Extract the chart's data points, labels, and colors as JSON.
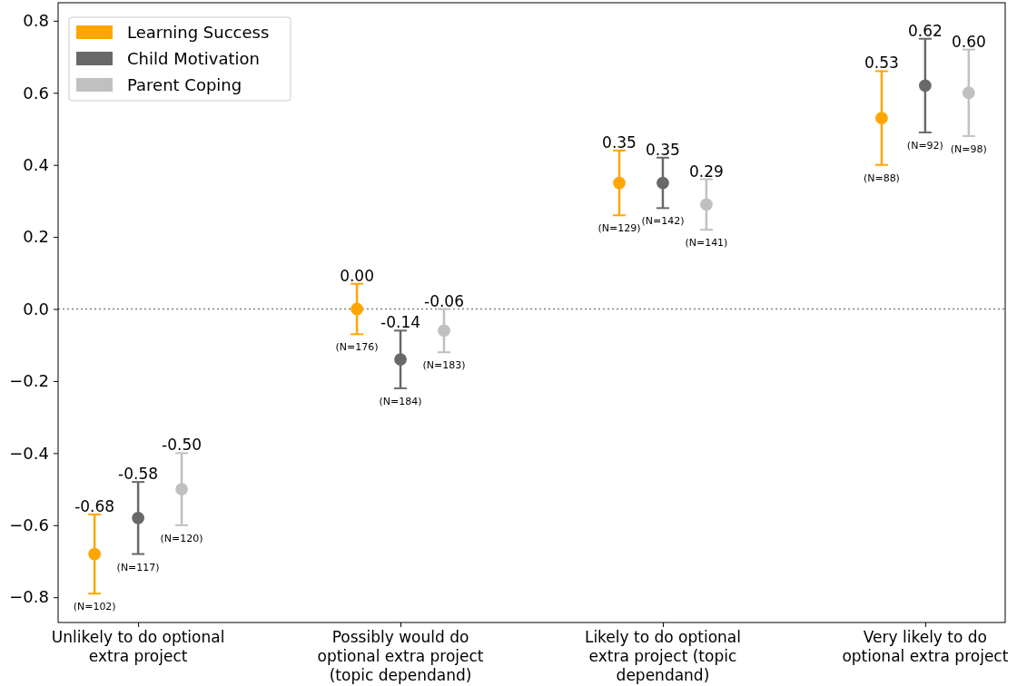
{
  "chart_data": {
    "type": "scatter",
    "categories": [
      "Unlikely to do optional extra project",
      "Possibly would do optional extra project (topic dependand)",
      "Likely to do optional extra project (topic dependand)",
      "Very likely to do optional extra project"
    ],
    "series": [
      {
        "name": "Learning Success",
        "color": "#ffa500",
        "values": [
          -0.68,
          0.0,
          0.35,
          0.53
        ],
        "errors": [
          0.11,
          0.07,
          0.09,
          0.13
        ],
        "value_labels": [
          "-0.68",
          "0.00",
          "0.35",
          "0.53"
        ]
      },
      {
        "name": "Child Motivation",
        "color": "#696969",
        "values": [
          -0.58,
          -0.14,
          0.35,
          0.62
        ],
        "errors": [
          0.1,
          0.08,
          0.07,
          0.13
        ],
        "value_labels": [
          "-0.58",
          "-0.14",
          "0.35",
          "0.62"
        ]
      },
      {
        "name": "Parent Coping",
        "color": "#c0c0c0",
        "values": [
          -0.5,
          -0.06,
          0.29,
          0.6
        ],
        "errors": [
          0.1,
          0.06,
          0.07,
          0.12
        ],
        "value_labels": [
          "-0.50",
          "-0.06",
          "0.29",
          "0.60"
        ]
      }
    ],
    "ylim": [
      -0.87,
      0.85
    ],
    "yticks": [
      {
        "value": -0.8,
        "label": "−0.8"
      },
      {
        "value": -0.6,
        "label": "−0.6"
      },
      {
        "value": -0.4,
        "label": "−0.4"
      },
      {
        "value": -0.2,
        "label": "−0.2"
      },
      {
        "value": 0,
        "label": "0.0"
      },
      0.2,
      0.4,
      0.6,
      0.8
    ],
    "ref_lines": [
      {
        "axis": "y",
        "value": 0,
        "color": "#808080",
        "line_style": "dotted"
      }
    ],
    "legend": "top left",
    "marker": "circle",
    "grid": false,
    "annotations": [
      "(N=102)",
      "(N=117)",
      "(N=120)",
      "(N=176)",
      "(N=184)",
      "(N=183)",
      "(N=129)",
      "(N=142)",
      "(N=141)",
      "(N=88)",
      "(N=92)",
      "(N=98)"
    ]
  }
}
